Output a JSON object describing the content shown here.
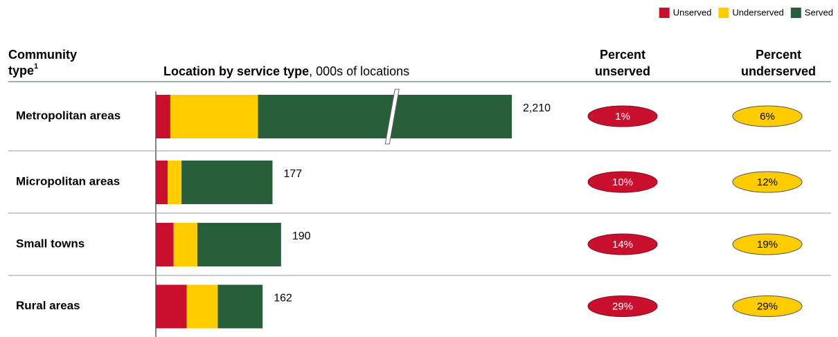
{
  "chart_data": {
    "type": "stacked-bar-table",
    "stub_header": [
      "Community",
      "type"
    ],
    "stub_footnote": "1",
    "title": "Location by service type",
    "subtitle": ", 000s of locations",
    "categories": [
      "Metropolitan areas",
      "Micropolitan areas",
      "Small towns",
      "Rural areas"
    ],
    "series": [
      {
        "name": "Unserved",
        "color": "#c8102e",
        "values": [
          22,
          18,
          27,
          47
        ]
      },
      {
        "name": "Underserved",
        "color": "#ffcc00",
        "values": [
          133,
          21,
          36,
          47
        ]
      },
      {
        "name": "Served",
        "color": "#285e3a",
        "values": [
          2055,
          138,
          127,
          68
        ]
      }
    ],
    "totals": {
      "values": [
        2210,
        177,
        190,
        162
      ],
      "value_labels": [
        "2,210",
        "177",
        "190",
        "162"
      ]
    },
    "xlim": [
      0,
      540
    ],
    "axis_break": true,
    "percent_unserved": {
      "header": [
        "Percent",
        "unserved"
      ],
      "color": "#c8102e",
      "values": [
        1,
        10,
        14,
        29
      ],
      "value_labels": [
        "1%",
        "10%",
        "14%",
        "29%"
      ]
    },
    "percent_underserved": {
      "header": [
        "Percent",
        "underserved"
      ],
      "color": "#ffcc00",
      "values": [
        6,
        12,
        19,
        29
      ],
      "value_labels": [
        "6%",
        "12%",
        "19%",
        "29%"
      ]
    },
    "legend_position": "top-right"
  }
}
